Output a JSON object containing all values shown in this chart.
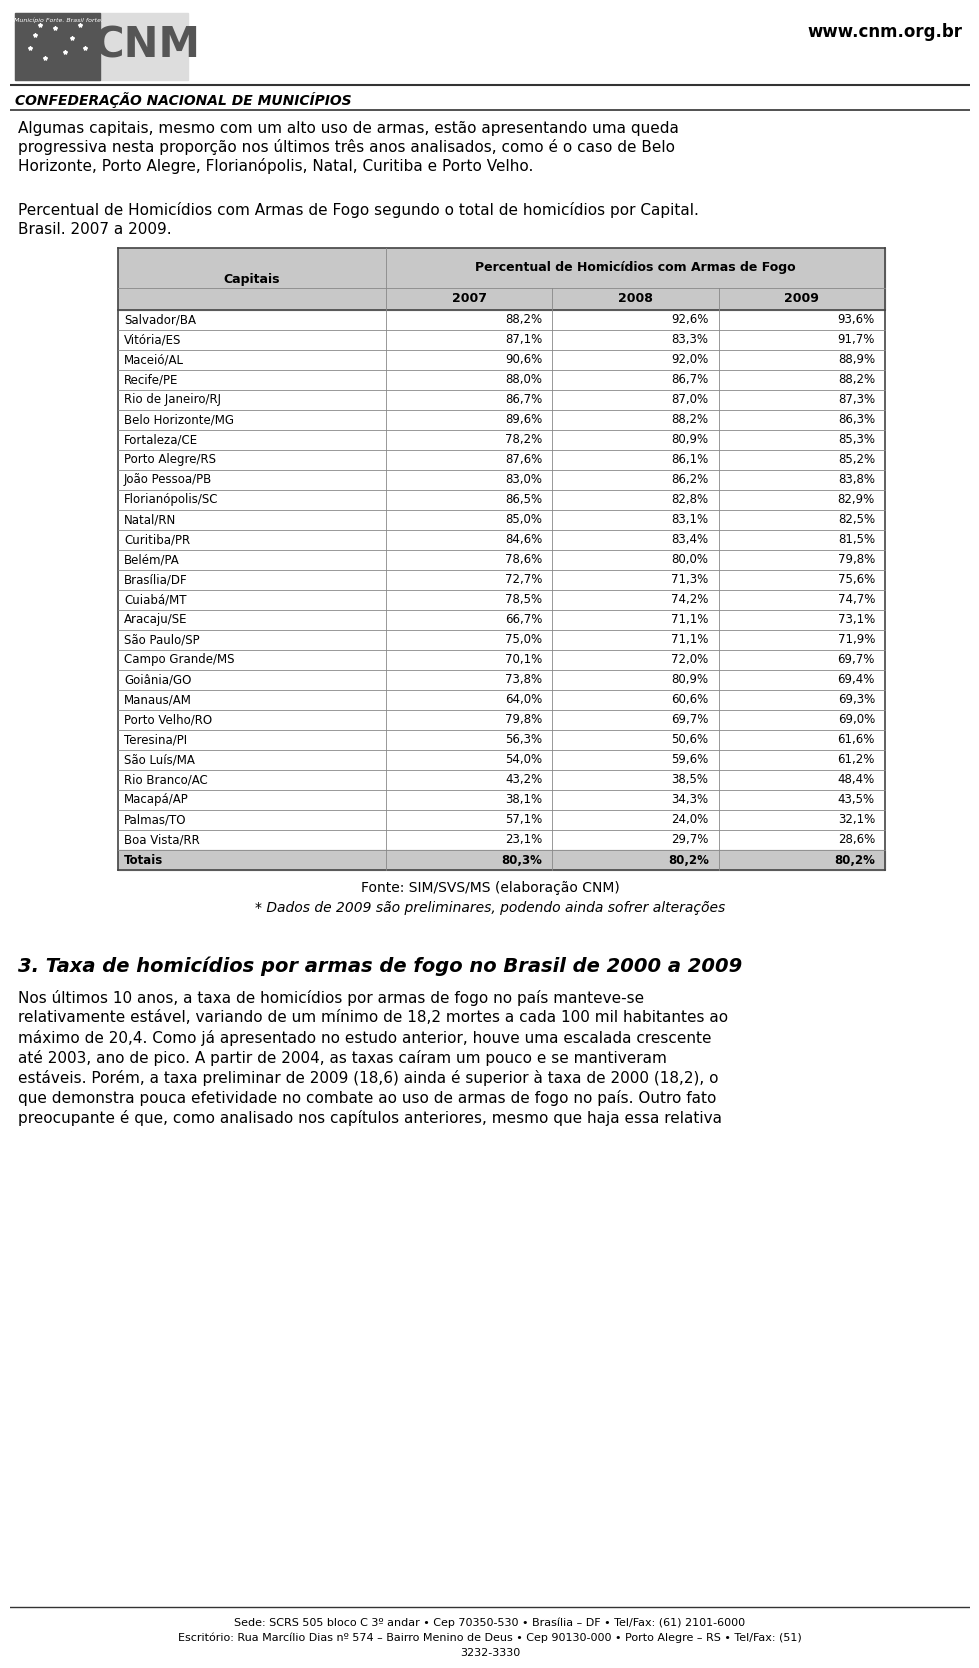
{
  "page_width": 9.6,
  "page_height": 16.43,
  "dpi": 100,
  "background_color": "#ffffff",
  "header": {
    "website": "www.cnm.org.br",
    "org_name": "CONFEDERAÇÃO NACIONAL DE MUNICÍPIOS"
  },
  "intro_lines": [
    "Algumas capitais, mesmo com um alto uso de armas, estão apresentando uma queda",
    "progressiva nesta proporção nos últimos três anos analisados, como é o caso de Belo",
    "Horizonte, Porto Alegre, Florianópolis, Natal, Curitiba e Porto Velho."
  ],
  "table_title_line1": "Percentual de Homicídios com Armas de Fogo segundo o total de homicídios por Capital.",
  "table_title_line2": "Brasil. 2007 a 2009.",
  "table_header_col1": "Capitais",
  "table_header_col2": "Percentual de Homicídios com Armas de Fogo",
  "table_years": [
    "2007",
    "2008",
    "2009"
  ],
  "table_data": [
    [
      "Salvador/BA",
      "88,2%",
      "92,6%",
      "93,6%"
    ],
    [
      "Vitória/ES",
      "87,1%",
      "83,3%",
      "91,7%"
    ],
    [
      "Maceió/AL",
      "90,6%",
      "92,0%",
      "88,9%"
    ],
    [
      "Recife/PE",
      "88,0%",
      "86,7%",
      "88,2%"
    ],
    [
      "Rio de Janeiro/RJ",
      "86,7%",
      "87,0%",
      "87,3%"
    ],
    [
      "Belo Horizonte/MG",
      "89,6%",
      "88,2%",
      "86,3%"
    ],
    [
      "Fortaleza/CE",
      "78,2%",
      "80,9%",
      "85,3%"
    ],
    [
      "Porto Alegre/RS",
      "87,6%",
      "86,1%",
      "85,2%"
    ],
    [
      "João Pessoa/PB",
      "83,0%",
      "86,2%",
      "83,8%"
    ],
    [
      "Florianópolis/SC",
      "86,5%",
      "82,8%",
      "82,9%"
    ],
    [
      "Natal/RN",
      "85,0%",
      "83,1%",
      "82,5%"
    ],
    [
      "Curitiba/PR",
      "84,6%",
      "83,4%",
      "81,5%"
    ],
    [
      "Belém/PA",
      "78,6%",
      "80,0%",
      "79,8%"
    ],
    [
      "Brasília/DF",
      "72,7%",
      "71,3%",
      "75,6%"
    ],
    [
      "Cuiabá/MT",
      "78,5%",
      "74,2%",
      "74,7%"
    ],
    [
      "Aracaju/SE",
      "66,7%",
      "71,1%",
      "73,1%"
    ],
    [
      "São Paulo/SP",
      "75,0%",
      "71,1%",
      "71,9%"
    ],
    [
      "Campo Grande/MS",
      "70,1%",
      "72,0%",
      "69,7%"
    ],
    [
      "Goiânia/GO",
      "73,8%",
      "80,9%",
      "69,4%"
    ],
    [
      "Manaus/AM",
      "64,0%",
      "60,6%",
      "69,3%"
    ],
    [
      "Porto Velho/RO",
      "79,8%",
      "69,7%",
      "69,0%"
    ],
    [
      "Teresina/PI",
      "56,3%",
      "50,6%",
      "61,6%"
    ],
    [
      "São Luís/MA",
      "54,0%",
      "59,6%",
      "61,2%"
    ],
    [
      "Rio Branco/AC",
      "43,2%",
      "38,5%",
      "48,4%"
    ],
    [
      "Macapá/AP",
      "38,1%",
      "34,3%",
      "43,5%"
    ],
    [
      "Palmas/TO",
      "57,1%",
      "24,0%",
      "32,1%"
    ],
    [
      "Boa Vista/RR",
      "23,1%",
      "29,7%",
      "28,6%"
    ]
  ],
  "table_totals": [
    "Totais",
    "80,3%",
    "80,2%",
    "80,2%"
  ],
  "fonte_text": "Fonte: SIM/SVS/MS (elaboração CNM)",
  "nota_text": "* Dados de 2009 são preliminares, podendo ainda sofrer alterações",
  "section_title": "3. Taxa de homicídios por armas de fogo no Brasil de 2000 a 2009",
  "section_lines": [
    "Nos últimos 10 anos, a taxa de homicídios por armas de fogo no país manteve-se",
    "relativamente estável, variando de um mínimo de 18,2 mortes a cada 100 mil habitantes ao",
    "máximo de 20,4. Como já apresentado no estudo anterior, houve uma escalada crescente",
    "até 2003, ano de pico. A partir de 2004, as taxas caíram um pouco e se mantiveram",
    "estáveis. Porém, a taxa preliminar de 2009 (18,6) ainda é superior à taxa de 2000 (18,2), o",
    "que demonstra pouca efetividade no combate ao uso de armas de fogo no país. Outro fato",
    "preocupante é que, como analisado nos capítulos anteriores, mesmo que haja essa relativa"
  ],
  "footer_line1": "Sede: SCRS 505 bloco C 3º andar • Cep 70350-530 • Brasília – DF • Tel/Fax: (61) 2101-6000",
  "footer_line2": "Escritório: Rua Marcílio Dias nº 574 – Bairro Menino de Deus • Cep 90130-000 • Porto Alegre – RS • Tel/Fax: (51)",
  "footer_line3": "3232-3330",
  "header_bg": "#c8c8c8",
  "totals_bg": "#c8c8c8",
  "table_border_color": "#888888",
  "text_color": "#000000"
}
